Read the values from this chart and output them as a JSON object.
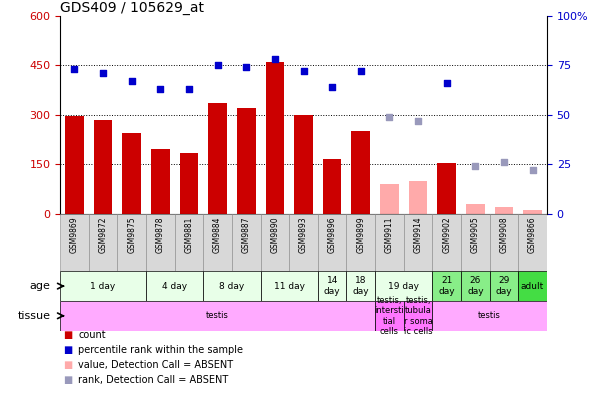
{
  "title": "GDS409 / 105629_at",
  "samples": [
    "GSM9869",
    "GSM9872",
    "GSM9875",
    "GSM9878",
    "GSM9881",
    "GSM9884",
    "GSM9887",
    "GSM9890",
    "GSM9893",
    "GSM9896",
    "GSM9899",
    "GSM9911",
    "GSM9914",
    "GSM9902",
    "GSM9905",
    "GSM9908",
    "GSM9866"
  ],
  "bar_values": [
    295,
    285,
    245,
    195,
    185,
    335,
    320,
    460,
    300,
    165,
    250,
    null,
    null,
    155,
    null,
    null,
    null
  ],
  "bar_values_absent": [
    null,
    null,
    null,
    null,
    null,
    null,
    null,
    null,
    null,
    null,
    null,
    90,
    100,
    null,
    30,
    22,
    12
  ],
  "scatter_pct": [
    73,
    71,
    67,
    63,
    63,
    75,
    74,
    78,
    72,
    64,
    72,
    null,
    null,
    66,
    null,
    null,
    null
  ],
  "scatter_pct_absent": [
    null,
    null,
    null,
    null,
    null,
    null,
    null,
    null,
    null,
    null,
    null,
    49,
    47,
    null,
    24,
    26,
    22
  ],
  "bar_color": "#cc0000",
  "bar_absent_color": "#ffaaaa",
  "scatter_color": "#0000cc",
  "scatter_absent_color": "#9999bb",
  "ylim_left": [
    0,
    600
  ],
  "ylim_right": [
    0,
    100
  ],
  "yticks_left": [
    0,
    150,
    300,
    450,
    600
  ],
  "yticks_right": [
    0,
    25,
    50,
    75,
    100
  ],
  "hlines": [
    150,
    300,
    450
  ],
  "age_groups": [
    {
      "label": "1 day",
      "start": 0,
      "end": 2,
      "color": "#e8ffe8"
    },
    {
      "label": "4 day",
      "start": 3,
      "end": 4,
      "color": "#e8ffe8"
    },
    {
      "label": "8 day",
      "start": 5,
      "end": 6,
      "color": "#e8ffe8"
    },
    {
      "label": "11 day",
      "start": 7,
      "end": 8,
      "color": "#e8ffe8"
    },
    {
      "label": "14\nday",
      "start": 9,
      "end": 9,
      "color": "#e8ffe8"
    },
    {
      "label": "18\nday",
      "start": 10,
      "end": 10,
      "color": "#e8ffe8"
    },
    {
      "label": "19 day",
      "start": 11,
      "end": 12,
      "color": "#e8ffe8"
    },
    {
      "label": "21\nday",
      "start": 13,
      "end": 13,
      "color": "#88ee88"
    },
    {
      "label": "26\nday",
      "start": 14,
      "end": 14,
      "color": "#88ee88"
    },
    {
      "label": "29\nday",
      "start": 15,
      "end": 15,
      "color": "#88ee88"
    },
    {
      "label": "adult",
      "start": 16,
      "end": 16,
      "color": "#44dd44"
    }
  ],
  "tissue_groups": [
    {
      "label": "testis",
      "start": 0,
      "end": 10,
      "color": "#ffaaff"
    },
    {
      "label": "testis,\nintersti\ntial\ncells",
      "start": 11,
      "end": 11,
      "color": "#ff77ff"
    },
    {
      "label": "testis,\ntubula\nr soma\nic cells",
      "start": 12,
      "end": 12,
      "color": "#ff77ff"
    },
    {
      "label": "testis",
      "start": 13,
      "end": 16,
      "color": "#ffaaff"
    }
  ],
  "bg_color": "#ffffff",
  "tick_color_left": "#cc0000",
  "tick_color_right": "#0000cc",
  "legend_items": [
    {
      "color": "#cc0000",
      "label": "count"
    },
    {
      "color": "#0000cc",
      "label": "percentile rank within the sample"
    },
    {
      "color": "#ffaaaa",
      "label": "value, Detection Call = ABSENT"
    },
    {
      "color": "#9999bb",
      "label": "rank, Detection Call = ABSENT"
    }
  ]
}
